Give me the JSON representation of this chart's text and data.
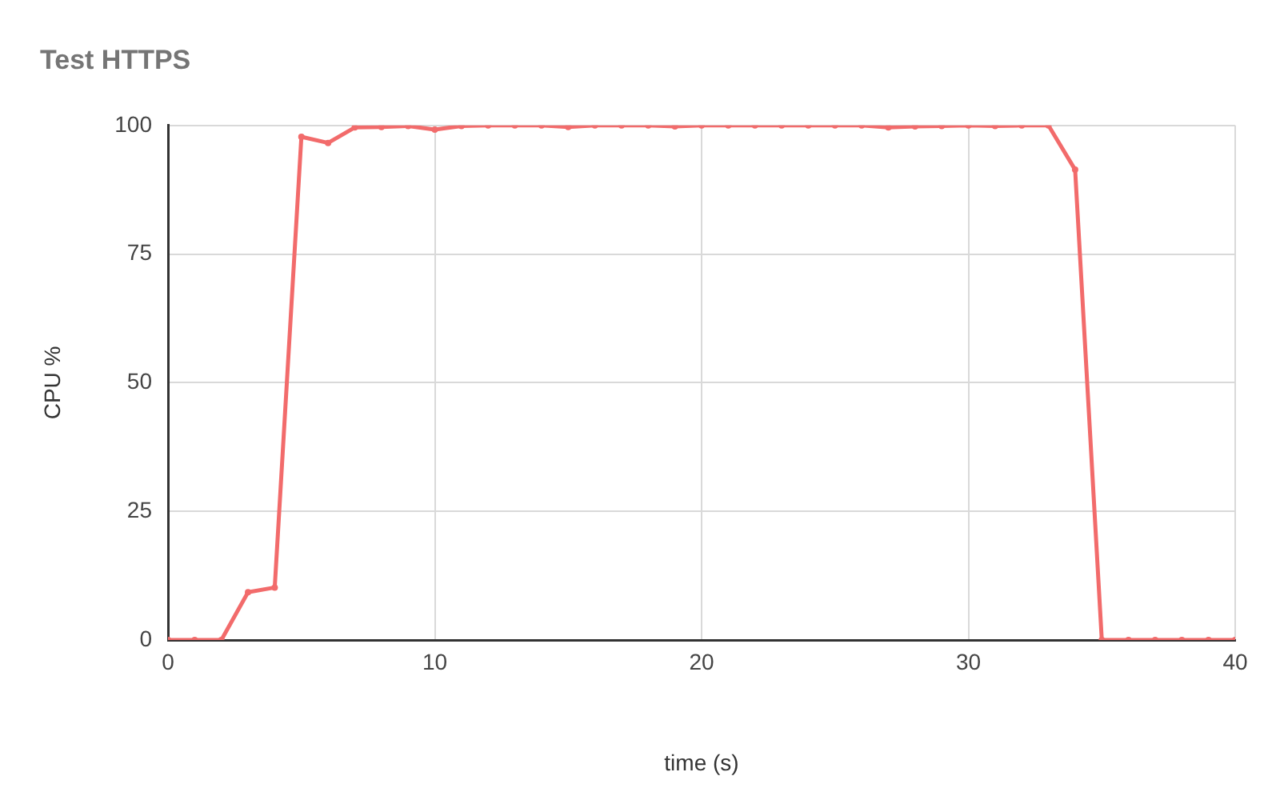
{
  "chart_data": {
    "type": "line",
    "title": "Test HTTPS",
    "xlabel": "time (s)",
    "ylabel": "CPU %",
    "x": [
      0,
      1,
      2,
      3,
      4,
      5,
      6,
      7,
      8,
      9,
      10,
      11,
      12,
      13,
      14,
      15,
      16,
      17,
      18,
      19,
      20,
      21,
      22,
      23,
      24,
      25,
      26,
      27,
      28,
      29,
      30,
      31,
      32,
      33,
      34,
      35,
      36,
      37,
      38,
      39,
      40
    ],
    "series": [
      {
        "color": "#f26b6b",
        "values": [
          0,
          0,
          0,
          9.3,
          10.2,
          97.8,
          96.6,
          99.6,
          99.7,
          99.9,
          99.2,
          99.9,
          100,
          100,
          100,
          99.7,
          100,
          100,
          100,
          99.8,
          100,
          100,
          100,
          100,
          100,
          100,
          100,
          99.6,
          99.8,
          99.9,
          100,
          99.9,
          100,
          100,
          91.4,
          0,
          0,
          0,
          0,
          0,
          0
        ]
      }
    ],
    "xlim": [
      0,
      40
    ],
    "ylim": [
      0,
      100
    ],
    "xticks": [
      0,
      10,
      20,
      30,
      40
    ],
    "yticks": [
      0,
      25,
      50,
      75,
      100
    ],
    "grid": true,
    "marker": "circle",
    "line_style": "solid"
  }
}
